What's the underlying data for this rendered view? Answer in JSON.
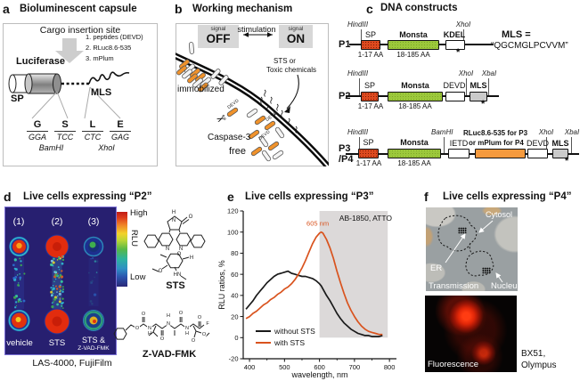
{
  "colors": {
    "accent_orange": "#f0922b",
    "sp_box": "#dd4a1f",
    "monsta_box": "#9cc83b",
    "cargo_box": "#f59a3e",
    "mls_box": "#cacaca",
    "with_sts_line": "#d9531e",
    "without_sts_line": "#1a1a1a",
    "assay_bg": "#271f70"
  },
  "panels": {
    "a": {
      "letter": "a",
      "title": "Bioluminescent capsule",
      "cargo_title": "Cargo insertion site",
      "cargo_items": [
        "1. peptides (DEVD)",
        "2. RLuc8.6-535",
        "3. mPlum"
      ],
      "luciferase": "Luciferase",
      "sp": "SP",
      "mls": "MLS",
      "site1": {
        "aa1": "G",
        "aa2": "S",
        "codon1": "GGA",
        "codon2": "TCC",
        "enzyme": "BamHI"
      },
      "site2": {
        "aa1": "L",
        "aa2": "E",
        "codon1": "CTC",
        "codon2": "GAG",
        "enzyme": "XhoI"
      }
    },
    "b": {
      "letter": "b",
      "title": "Working mechanism",
      "signal_small": "signal",
      "off": "OFF",
      "on": "ON",
      "stimulation": "stimulation",
      "trigger1": "STS or",
      "trigger2": "Toxic chemicals",
      "immobilized": "immobilized",
      "caspase": "Caspase-3",
      "free": "free",
      "devd": "DEVD",
      "scissors_icon": "✂"
    },
    "c": {
      "letter": "c",
      "title": "DNA constructs",
      "mls_def_lhs": "MLS =",
      "mls_def_rhs": "“QGCMGLPCVVM”",
      "p1": {
        "name": "P1",
        "hind": "HindIII",
        "xho": "XhoI",
        "sp": "SP",
        "monsta": "Monsta",
        "kdel": "KDEL",
        "aa_sp": "1-17 AA",
        "aa_monsta": "18-185 AA",
        "star": "*"
      },
      "p2": {
        "name": "P2",
        "hind": "HindIII",
        "xho": "XhoI",
        "xba": "XbaI",
        "sp": "SP",
        "monsta": "Monsta",
        "devd": "DEVD",
        "mls": "MLS",
        "aa_sp": "1-17 AA",
        "aa_monsta": "18-185 AA",
        "star": "*"
      },
      "p34": {
        "name1": "P3",
        "name2": "/P4",
        "hind": "HindIII",
        "bam": "BamHI",
        "xho": "XhoI",
        "xba": "XbaI",
        "sp": "SP",
        "monsta": "Monsta",
        "ietd": "IETD",
        "cargo1": "RLuc8.6-535 for P3",
        "cargo2": "or mPlum for P4",
        "devd": "DEVD",
        "mls": "MLS",
        "aa_sp": "1-17 AA",
        "aa_monsta": "18-185 AA",
        "star": "*"
      }
    },
    "d": {
      "letter": "d",
      "title": "Live cells expressing “P2”",
      "lane_numbers": [
        "(1)",
        "(2)",
        "(3)"
      ],
      "lane_labels": [
        "vehicle",
        "STS",
        "STS &"
      ],
      "lane3_sub": "Z-VAD-FMK",
      "colorbar_high": "High",
      "colorbar_low": "Low",
      "colorbar_axis": "RLU",
      "caption": "LAS-4000, FujiFilm",
      "structure1": "STS",
      "structure2": "Z-VAD-FMK"
    },
    "e": {
      "letter": "e",
      "title": "Live cells expressing “P3”"
    },
    "f": {
      "letter": "f",
      "title": "Live cells expressing “P4”",
      "label_cytosol": "Cytosol",
      "label_er": "ER",
      "label_nucleus": "Nucleus",
      "caption_top": "Transmission",
      "caption_bottom": "Fluorescence",
      "instrument1": "BX51,",
      "instrument2": "Olympus"
    }
  },
  "chart_data": {
    "type": "line",
    "title": "Live cells expressing “P3”",
    "xlabel": "wavelength, nm",
    "ylabel": "RLU ratios, %",
    "xlim": [
      382,
      820
    ],
    "ylim": [
      -20,
      120
    ],
    "xticks": [
      400,
      500,
      600,
      700,
      800
    ],
    "yticks": [
      -20,
      0,
      20,
      40,
      60,
      80,
      100,
      120
    ],
    "corner_label": "AB-1850, ATTO",
    "annotation": "605 nm",
    "annotation_x": 605,
    "shaded_region": {
      "x0": 600,
      "x1": 795,
      "y0": 0,
      "y1": 120
    },
    "legend_position": "bottom-left",
    "grid": false,
    "x": [
      390,
      400,
      410,
      420,
      430,
      440,
      450,
      460,
      470,
      480,
      490,
      500,
      510,
      520,
      530,
      540,
      550,
      560,
      570,
      580,
      590,
      600,
      605,
      610,
      620,
      630,
      640,
      650,
      660,
      670,
      680,
      690,
      700,
      710,
      720,
      730,
      740,
      750,
      760,
      770,
      780
    ],
    "series": [
      {
        "name": "without STS",
        "color": "#1a1a1a",
        "values": [
          27,
          31,
          35,
          40,
          44,
          48,
          52,
          55,
          58,
          60,
          61,
          62,
          63,
          61,
          60,
          59,
          58,
          58,
          57,
          56,
          54,
          51,
          49,
          46,
          40,
          35,
          29,
          23,
          18,
          14,
          11,
          8,
          6,
          4,
          3,
          2,
          2,
          1,
          1,
          1,
          2
        ]
      },
      {
        "name": "with STS",
        "color": "#d9531e",
        "values": [
          18,
          20,
          23,
          25,
          28,
          31,
          33,
          36,
          38,
          41,
          43,
          46,
          48,
          51,
          55,
          60,
          66,
          73,
          81,
          89,
          95,
          99,
          100,
          99,
          93,
          85,
          75,
          63,
          52,
          42,
          33,
          26,
          20,
          15,
          11,
          8,
          6,
          5,
          4,
          3,
          3
        ]
      }
    ]
  }
}
